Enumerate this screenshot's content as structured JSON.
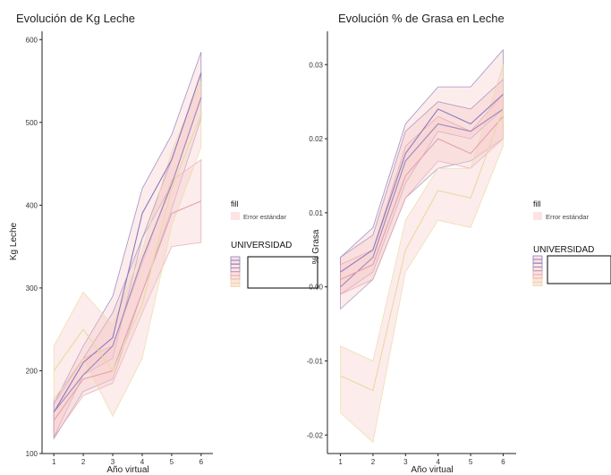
{
  "chart_data": [
    {
      "type": "line",
      "title": "Evolución de Kg Leche",
      "xlabel": "Año virtual",
      "ylabel": "Kg Leche",
      "x": [
        1,
        2,
        3,
        4,
        5,
        6
      ],
      "xlim": [
        0.6,
        6.4
      ],
      "ylim": [
        100,
        610
      ],
      "yticks": [
        100,
        200,
        300,
        400,
        500,
        600
      ],
      "grid": false,
      "series": [
        {
          "color": "#8a7bbf",
          "values": [
            150,
            210,
            240,
            390,
            455,
            560
          ],
          "lower": [
            120,
            195,
            215,
            360,
            425,
            530
          ],
          "upper": [
            160,
            230,
            290,
            420,
            485,
            585
          ]
        },
        {
          "color": "#9a8ab8",
          "values": [
            150,
            195,
            230,
            335,
            425,
            530
          ],
          "lower": [
            118,
            175,
            190,
            295,
            395,
            505
          ],
          "upper": [
            165,
            215,
            270,
            360,
            455,
            560
          ]
        },
        {
          "color": "#e3a3ad",
          "values": [
            140,
            190,
            200,
            295,
            390,
            405
          ],
          "lower": [
            120,
            170,
            185,
            270,
            350,
            355
          ],
          "upper": [
            160,
            215,
            230,
            330,
            430,
            455
          ]
        },
        {
          "color": "#ead9a0",
          "values": [
            200,
            250,
            200,
            280,
            420,
            510
          ],
          "lower": [
            165,
            215,
            145,
            215,
            375,
            470
          ],
          "upper": [
            230,
            295,
            255,
            345,
            465,
            550
          ]
        }
      ]
    },
    {
      "type": "line",
      "title": "Evolución % de Grasa en Leche",
      "xlabel": "Año virtual",
      "ylabel": "% Grasa",
      "x": [
        1,
        2,
        3,
        4,
        5,
        6
      ],
      "xlim": [
        0.6,
        6.4
      ],
      "ylim": [
        -0.0225,
        0.0345
      ],
      "yticks": [
        -0.02,
        -0.01,
        0.0,
        0.01,
        0.02,
        0.03
      ],
      "ytick_labels": [
        "-0.02",
        "-0.01",
        "0.00",
        "0.01",
        "0.02",
        "0.03"
      ],
      "grid": false,
      "series": [
        {
          "color": "#8a7bbf",
          "values": [
            0.002,
            0.005,
            0.018,
            0.024,
            0.022,
            0.026
          ],
          "lower": [
            -0.001,
            0.002,
            0.014,
            0.021,
            0.02,
            0.024
          ],
          "upper": [
            0.004,
            0.008,
            0.022,
            0.027,
            0.027,
            0.032
          ]
        },
        {
          "color": "#9a8ab8",
          "values": [
            0.0,
            0.004,
            0.017,
            0.022,
            0.021,
            0.024
          ],
          "lower": [
            -0.003,
            0.001,
            0.012,
            0.016,
            0.017,
            0.02
          ],
          "upper": [
            0.004,
            0.007,
            0.021,
            0.025,
            0.024,
            0.028
          ]
        },
        {
          "color": "#e3a3ad",
          "values": [
            0.001,
            0.003,
            0.015,
            0.02,
            0.018,
            0.023
          ],
          "lower": [
            -0.001,
            0.001,
            0.012,
            0.017,
            0.016,
            0.02
          ],
          "upper": [
            0.003,
            0.005,
            0.019,
            0.023,
            0.021,
            0.026
          ]
        },
        {
          "color": "#ead9a0",
          "values": [
            -0.012,
            -0.014,
            0.005,
            0.013,
            0.012,
            0.024
          ],
          "lower": [
            -0.017,
            -0.021,
            0.002,
            0.009,
            0.008,
            0.019
          ],
          "upper": [
            -0.008,
            -0.01,
            0.009,
            0.016,
            0.016,
            0.03
          ]
        }
      ]
    }
  ],
  "legends": [
    {
      "fill_title": "fill",
      "fill_label": "Error estándar",
      "group_title": "UNIVERSIDAD"
    },
    {
      "fill_title": "fill",
      "fill_label": "Error estándar",
      "group_title": "UNIVERSIDAD"
    }
  ],
  "colors": {
    "band_fill": "#f7c9c9",
    "axis": "#222222",
    "key_fill": "#fde3e3"
  }
}
